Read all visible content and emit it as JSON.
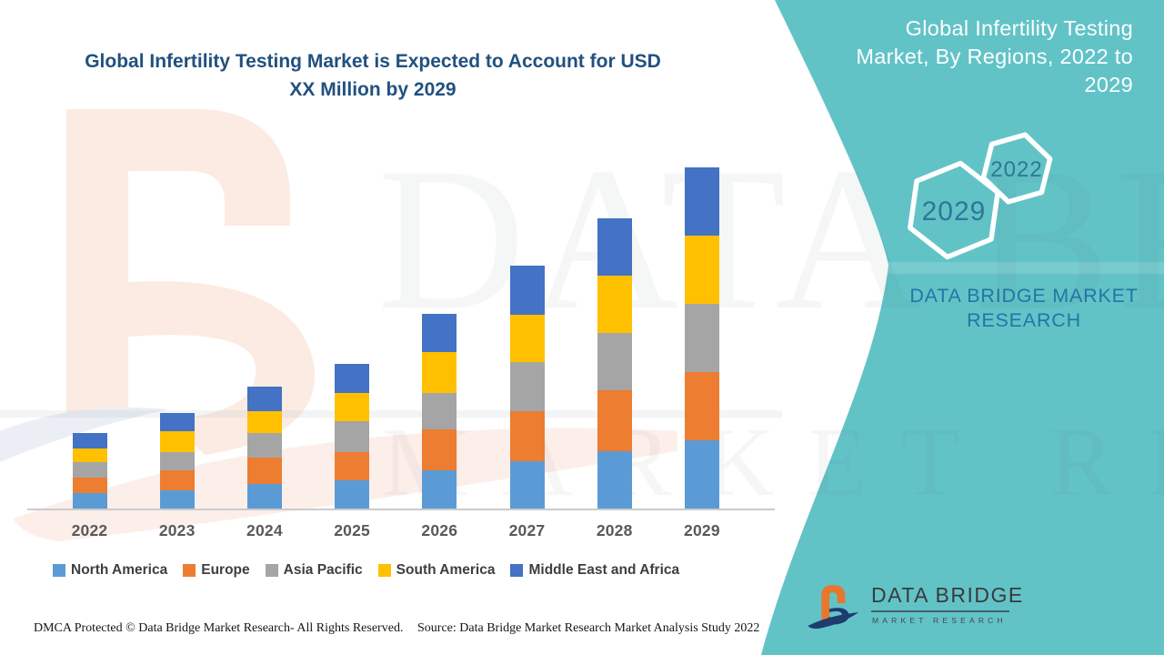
{
  "header": {
    "title_line1": "Global Infertility Testing Market is Expected to Account for USD",
    "title_line2": "XX Million by 2029"
  },
  "side_panel": {
    "title_line1": "Global Infertility Testing",
    "title_line2": "Market, By Regions, 2022 to",
    "title_line3": "2029",
    "hexagon_small_label": "2022",
    "hexagon_large_label": "2029",
    "brand_line1": "DATA BRIDGE MARKET",
    "brand_line2": "RESEARCH"
  },
  "chart_data": {
    "type": "bar",
    "stacked": true,
    "title": "Global Infertility Testing Market is Expected to Account for USD XX Million by 2029",
    "categories": [
      "2022",
      "2023",
      "2024",
      "2025",
      "2026",
      "2027",
      "2028",
      "2029"
    ],
    "series": [
      {
        "name": "North America",
        "color": "#5B9BD5",
        "values": [
          17,
          20,
          27,
          31,
          42,
          52,
          63,
          75
        ]
      },
      {
        "name": "Europe",
        "color": "#ED7D31",
        "values": [
          17,
          22,
          29,
          31,
          45,
          55,
          67,
          75
        ]
      },
      {
        "name": "Asia Pacific",
        "color": "#A5A5A5",
        "values": [
          17,
          20,
          27,
          34,
          40,
          54,
          63,
          75
        ]
      },
      {
        "name": "South America",
        "color": "#FFC000",
        "values": [
          15,
          23,
          24,
          31,
          45,
          52,
          63,
          75
        ]
      },
      {
        "name": "Middle East and Africa",
        "color": "#4472C4",
        "values": [
          17,
          20,
          27,
          32,
          42,
          54,
          63,
          75
        ]
      }
    ],
    "value_axis": {
      "visible": false,
      "min": 0,
      "max": 400
    },
    "legend_position": "bottom",
    "grid": false
  },
  "watermark": {
    "line1": "DATA BRIDGE",
    "line2": "MARKET RESEARCH"
  },
  "logo": {
    "name": "DATA BRIDGE",
    "subtitle": "MARKET  RESEARCH"
  },
  "footer": {
    "dmca": "DMCA Protected © Data Bridge Market Research- All Rights Reserved.",
    "source": "Source: Data Bridge Market Research Market Analysis Study 2022"
  },
  "colors": {
    "panel_teal": "#62C3C7",
    "title_blue": "#21517F",
    "brand_blue": "#2176A6",
    "hexagon_label_blue": "#2D7697",
    "logo_orange": "#E8762C",
    "logo_navy": "#1E3C6E"
  }
}
